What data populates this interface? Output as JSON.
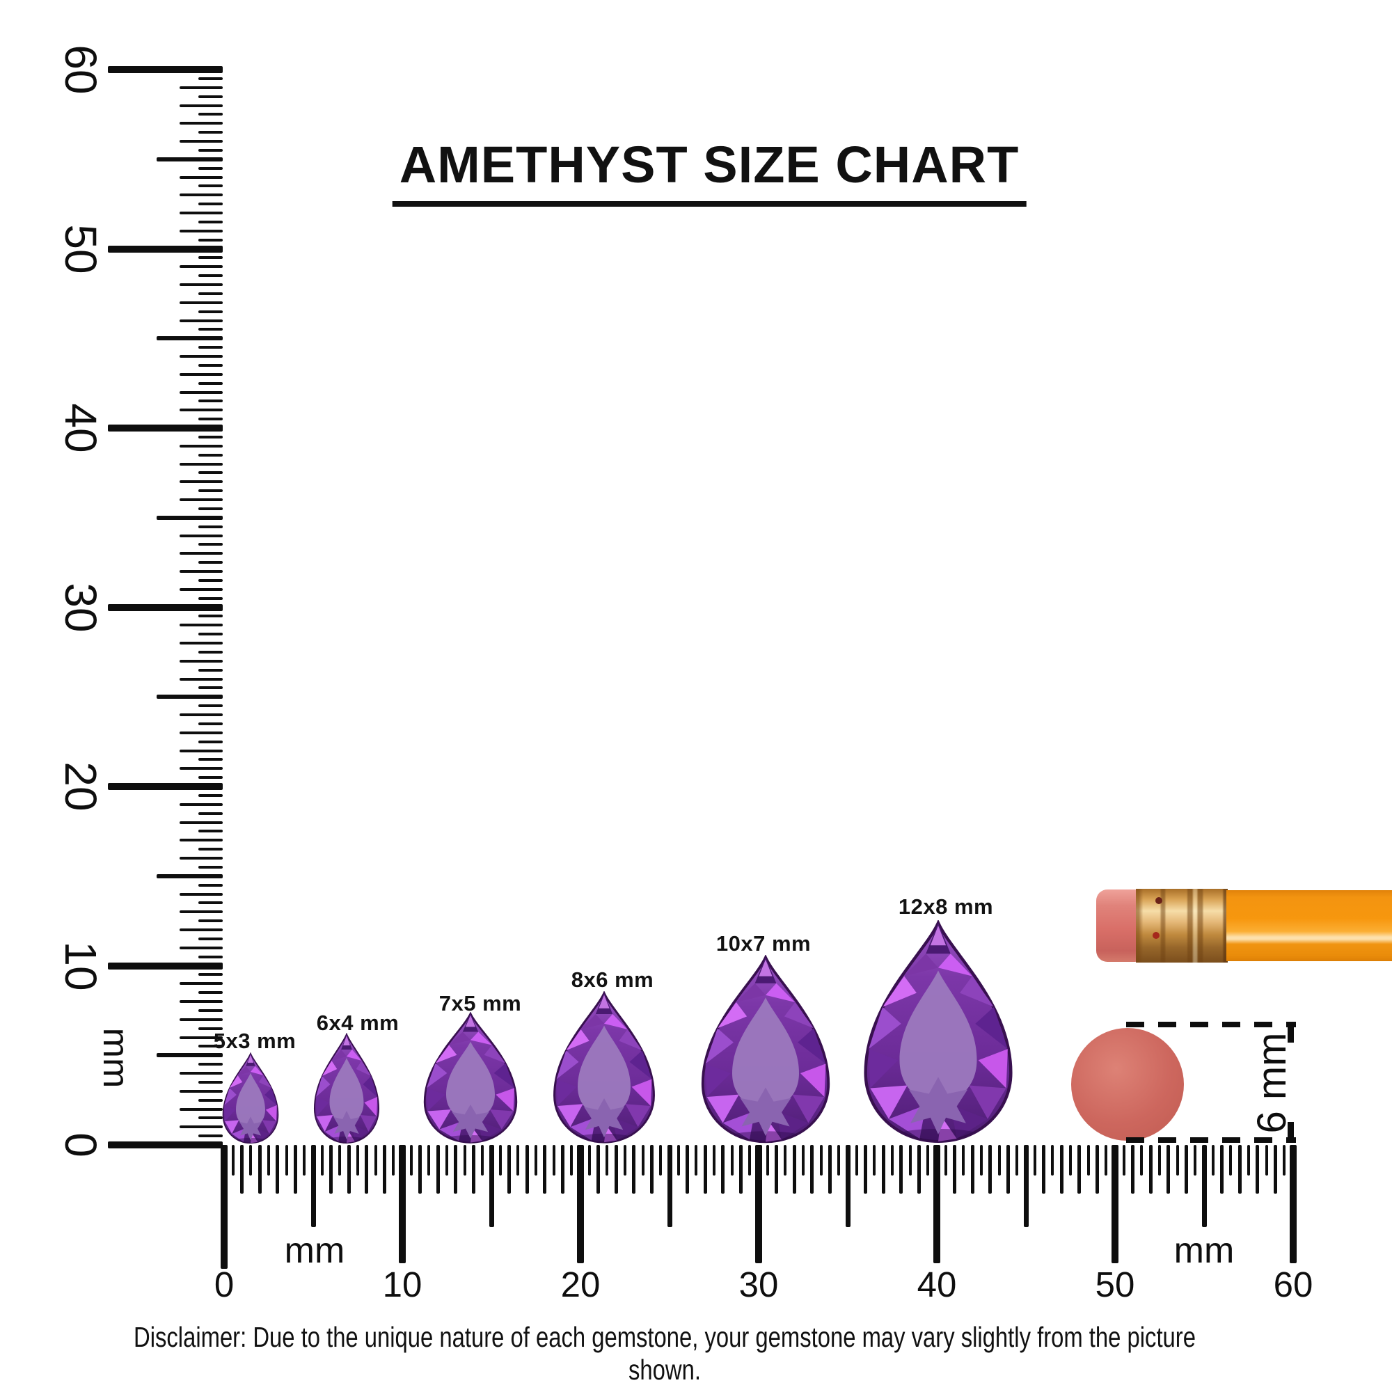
{
  "title": {
    "text": "AMETHYST SIZE CHART"
  },
  "rulers": {
    "vertical": {
      "unit_label": "mm",
      "min_mm": 0,
      "max_mm": 60,
      "tick_step_mm": 0.5,
      "numbered_every_mm": 10,
      "labels": [
        "60",
        "50",
        "40",
        "30",
        "20",
        "10",
        "0"
      ]
    },
    "horizontal": {
      "unit_labels": [
        "mm",
        "mm"
      ],
      "min_mm": 0,
      "max_mm": 60,
      "tick_step_mm": 0.5,
      "numbered_every_mm": 10,
      "labels": [
        "0",
        "10",
        "20",
        "30",
        "40",
        "50",
        "60"
      ]
    }
  },
  "gems": [
    {
      "label": "5x3 mm",
      "length_mm": 5,
      "width_mm": 3
    },
    {
      "label": "6x4 mm",
      "length_mm": 6,
      "width_mm": 4
    },
    {
      "label": "7x5 mm",
      "length_mm": 7,
      "width_mm": 5
    },
    {
      "label": "8x6 mm",
      "length_mm": 8,
      "width_mm": 6
    },
    {
      "label": "10x7 mm",
      "length_mm": 10,
      "width_mm": 7
    },
    {
      "label": "12x8 mm",
      "length_mm": 12,
      "width_mm": 8
    }
  ],
  "gem_shape": "pear",
  "reference_objects": {
    "pencil": {
      "description": "pencil with eraser end"
    },
    "eraser_top_view": {
      "diameter_label": "6 mm"
    }
  },
  "disclaimer": "Disclaimer: Due to the unique nature of each gemstone, your gemstone may vary slightly from the picture shown.",
  "colors": {
    "amethyst_primary": "#7c37a8",
    "amethyst_dark": "#4e1d74",
    "amethyst_light": "#9c79be",
    "amethyst_accent": "#d36cf5",
    "pencil_body": "#f7970e",
    "pencil_ferrule": "#d8a254",
    "pencil_eraser": "#d96f68",
    "eraser_circle": "#cd675e",
    "ink": "#111111"
  }
}
